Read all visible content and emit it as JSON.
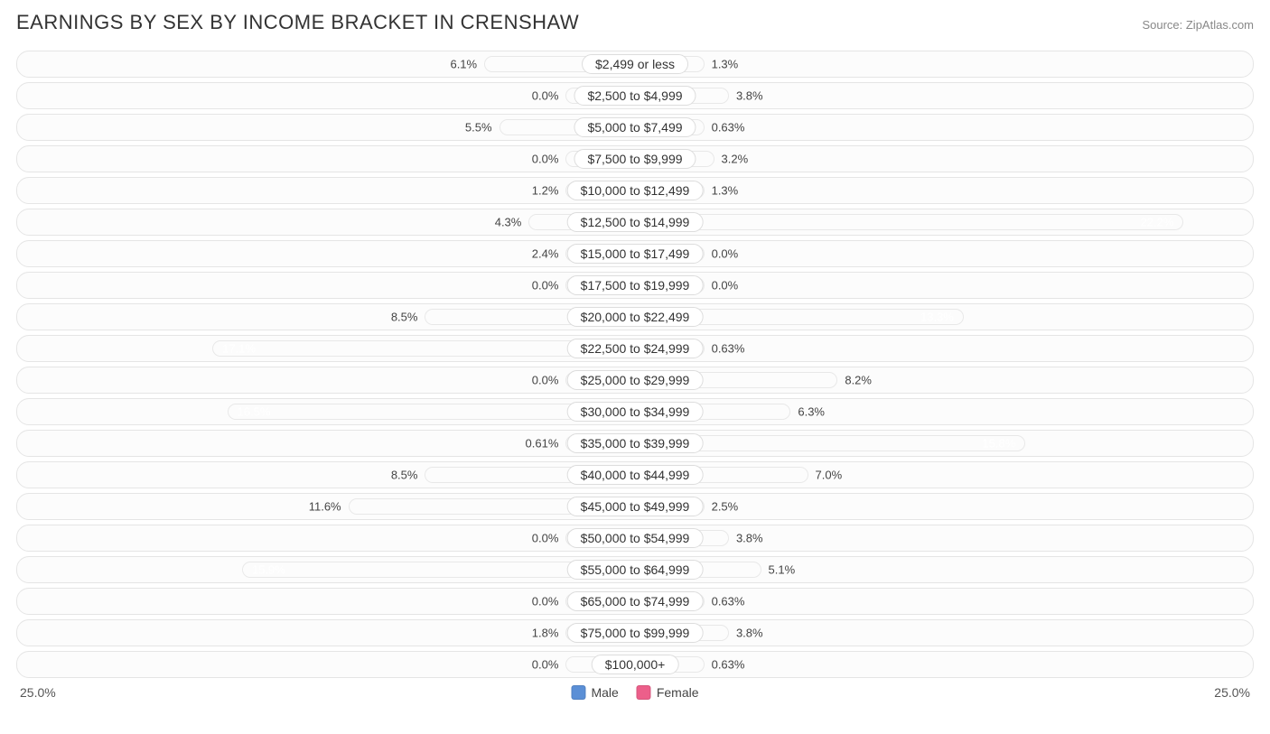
{
  "title": "EARNINGS BY SEX BY INCOME BRACKET IN CRENSHAW",
  "source": "Source: ZipAtlas.com",
  "axis_max": 25.0,
  "axis_label_left": "25.0%",
  "axis_label_right": "25.0%",
  "min_bar_pct": 2.8,
  "colors": {
    "male_base": "#7ba7d9",
    "male_intense": "#5b8fd6",
    "female_base": "#f5a3bb",
    "female_intense": "#ec5f8a",
    "row_border": "#e5e5e5",
    "row_bg": "#fcfcfc",
    "text": "#444444"
  },
  "legend": {
    "male": "Male",
    "female": "Female"
  },
  "rows": [
    {
      "label": "$2,499 or less",
      "male": 6.1,
      "male_txt": "6.1%",
      "female": 1.3,
      "female_txt": "1.3%"
    },
    {
      "label": "$2,500 to $4,999",
      "male": 0.0,
      "male_txt": "0.0%",
      "female": 3.8,
      "female_txt": "3.8%"
    },
    {
      "label": "$5,000 to $7,499",
      "male": 5.5,
      "male_txt": "5.5%",
      "female": 0.63,
      "female_txt": "0.63%"
    },
    {
      "label": "$7,500 to $9,999",
      "male": 0.0,
      "male_txt": "0.0%",
      "female": 3.2,
      "female_txt": "3.2%"
    },
    {
      "label": "$10,000 to $12,499",
      "male": 1.2,
      "male_txt": "1.2%",
      "female": 1.3,
      "female_txt": "1.3%"
    },
    {
      "label": "$12,500 to $14,999",
      "male": 4.3,
      "male_txt": "4.3%",
      "female": 22.2,
      "female_txt": "22.2%"
    },
    {
      "label": "$15,000 to $17,499",
      "male": 2.4,
      "male_txt": "2.4%",
      "female": 0.0,
      "female_txt": "0.0%"
    },
    {
      "label": "$17,500 to $19,999",
      "male": 0.0,
      "male_txt": "0.0%",
      "female": 0.0,
      "female_txt": "0.0%"
    },
    {
      "label": "$20,000 to $22,499",
      "male": 8.5,
      "male_txt": "8.5%",
      "female": 13.3,
      "female_txt": "13.3%"
    },
    {
      "label": "$22,500 to $24,999",
      "male": 17.1,
      "male_txt": "17.1%",
      "female": 0.63,
      "female_txt": "0.63%"
    },
    {
      "label": "$25,000 to $29,999",
      "male": 0.0,
      "male_txt": "0.0%",
      "female": 8.2,
      "female_txt": "8.2%"
    },
    {
      "label": "$30,000 to $34,999",
      "male": 16.5,
      "male_txt": "16.5%",
      "female": 6.3,
      "female_txt": "6.3%"
    },
    {
      "label": "$35,000 to $39,999",
      "male": 0.61,
      "male_txt": "0.61%",
      "female": 15.8,
      "female_txt": "15.8%"
    },
    {
      "label": "$40,000 to $44,999",
      "male": 8.5,
      "male_txt": "8.5%",
      "female": 7.0,
      "female_txt": "7.0%"
    },
    {
      "label": "$45,000 to $49,999",
      "male": 11.6,
      "male_txt": "11.6%",
      "female": 2.5,
      "female_txt": "2.5%"
    },
    {
      "label": "$50,000 to $54,999",
      "male": 0.0,
      "male_txt": "0.0%",
      "female": 3.8,
      "female_txt": "3.8%"
    },
    {
      "label": "$55,000 to $64,999",
      "male": 15.9,
      "male_txt": "15.9%",
      "female": 5.1,
      "female_txt": "5.1%"
    },
    {
      "label": "$65,000 to $74,999",
      "male": 0.0,
      "male_txt": "0.0%",
      "female": 0.63,
      "female_txt": "0.63%"
    },
    {
      "label": "$75,000 to $99,999",
      "male": 1.8,
      "male_txt": "1.8%",
      "female": 3.8,
      "female_txt": "3.8%"
    },
    {
      "label": "$100,000+",
      "male": 0.0,
      "male_txt": "0.0%",
      "female": 0.63,
      "female_txt": "0.63%"
    }
  ]
}
